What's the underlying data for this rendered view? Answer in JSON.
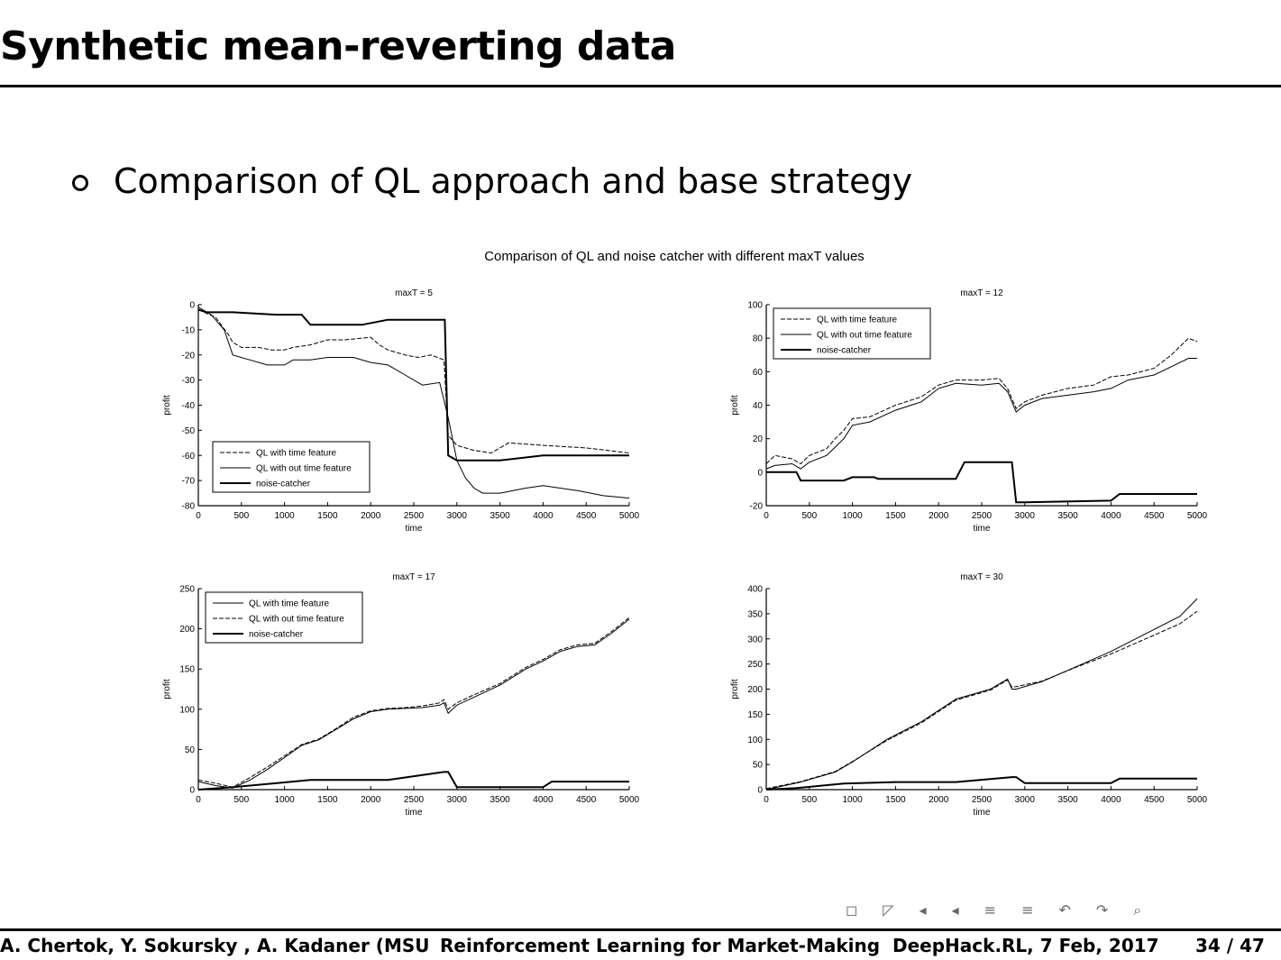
{
  "slide": {
    "title": "Synthetic mean-reverting data",
    "bullet": "Comparison of QL approach and base strategy",
    "nav_symbols": [
      "◻",
      "◸",
      "◂",
      "◂",
      "≡",
      "≡",
      "↶",
      "↷",
      "⌕"
    ],
    "footer": {
      "authors": "A. Chertok, Y. Sokursky , A. Kadaner (MSU",
      "talk": "Reinforcement Learning for Market-Making",
      "event": "DeepHack.RL, 7 Feb, 2017",
      "page": "34 / 47"
    }
  },
  "figure_title": "Comparison of QL and noise catcher with different maxT values",
  "chart_data": [
    {
      "type": "line",
      "title": "maxT = 5",
      "xlabel": "time",
      "ylabel": "profit",
      "xlim": [
        0,
        5000
      ],
      "ylim": [
        -80,
        0
      ],
      "xticks": [
        "0",
        "500",
        "1000",
        "1500",
        "2000",
        "2500",
        "3000",
        "3500",
        "4000",
        "4500",
        "5000"
      ],
      "yticks": [
        "0",
        "-10",
        "-20",
        "-30",
        "-40",
        "-50",
        "-60",
        "-70",
        "-80"
      ],
      "legend": "lower-left",
      "series": [
        {
          "name": "QL with time feature",
          "style": "dashed",
          "x": [
            0,
            200,
            350,
            400,
            500,
            700,
            850,
            1000,
            1100,
            1300,
            1500,
            1700,
            2000,
            2100,
            2200,
            2400,
            2550,
            2700,
            2850,
            2900,
            3000,
            3100,
            3200,
            3400,
            3600,
            4000,
            4500,
            5000
          ],
          "y": [
            -2,
            -5,
            -12,
            -15,
            -17,
            -17,
            -18,
            -18,
            -17,
            -16,
            -14,
            -14,
            -13,
            -16,
            -18,
            -20,
            -21,
            -20,
            -22,
            -52,
            -56,
            -57,
            -58,
            -59,
            -55,
            -56,
            -57,
            -59
          ]
        },
        {
          "name": "QL with out time feature",
          "style": "solid-thin",
          "x": [
            0,
            150,
            300,
            400,
            600,
            800,
            1000,
            1100,
            1300,
            1500,
            1800,
            2000,
            2200,
            2400,
            2600,
            2800,
            2900,
            3000,
            3100,
            3200,
            3300,
            3500,
            3800,
            4000,
            4400,
            4700,
            5000
          ],
          "y": [
            -1,
            -4,
            -10,
            -20,
            -22,
            -24,
            -24,
            -22,
            -22,
            -21,
            -21,
            -23,
            -24,
            -28,
            -32,
            -31,
            -45,
            -62,
            -69,
            -73,
            -75,
            -75,
            -73,
            -72,
            -74,
            -76,
            -77
          ]
        },
        {
          "name": "noise-catcher",
          "style": "solid",
          "x": [
            0,
            100,
            400,
            900,
            1200,
            1300,
            1900,
            2200,
            2700,
            2860,
            2900,
            3000,
            3500,
            4000,
            4500,
            5000
          ],
          "y": [
            -2,
            -3,
            -3,
            -4,
            -4,
            -8,
            -8,
            -6,
            -6,
            -6,
            -60,
            -62,
            -62,
            -60,
            -60,
            -60
          ]
        }
      ]
    },
    {
      "type": "line",
      "title": "maxT = 12",
      "xlabel": "time",
      "ylabel": "profit",
      "xlim": [
        0,
        5000
      ],
      "ylim": [
        -20,
        100
      ],
      "xticks": [
        "0",
        "500",
        "1000",
        "1500",
        "2000",
        "2500",
        "3000",
        "3500",
        "4000",
        "4500",
        "5000"
      ],
      "yticks": [
        "-20",
        "0",
        "20",
        "40",
        "60",
        "80",
        "100"
      ],
      "legend": "top-left",
      "series": [
        {
          "name": "QL with time feature",
          "style": "dashed",
          "x": [
            0,
            100,
            300,
            400,
            500,
            700,
            800,
            900,
            1000,
            1200,
            1500,
            1800,
            2000,
            2200,
            2500,
            2700,
            2800,
            2900,
            3000,
            3200,
            3500,
            3800,
            4000,
            4200,
            4500,
            4700,
            4900,
            5000
          ],
          "y": [
            5,
            10,
            8,
            5,
            10,
            14,
            20,
            25,
            32,
            33,
            40,
            45,
            52,
            55,
            55,
            56,
            50,
            38,
            42,
            46,
            50,
            52,
            57,
            58,
            62,
            70,
            80,
            78
          ]
        },
        {
          "name": "QL with out time feature",
          "style": "solid-thin",
          "x": [
            0,
            100,
            300,
            400,
            500,
            700,
            800,
            900,
            1000,
            1200,
            1500,
            1800,
            2000,
            2200,
            2500,
            2700,
            2800,
            2900,
            3000,
            3200,
            3500,
            3800,
            4000,
            4200,
            4500,
            4700,
            4900,
            5000
          ],
          "y": [
            2,
            4,
            5,
            2,
            6,
            10,
            15,
            20,
            28,
            30,
            37,
            42,
            50,
            53,
            52,
            53,
            48,
            36,
            40,
            44,
            46,
            48,
            50,
            55,
            58,
            63,
            68,
            68
          ]
        },
        {
          "name": "noise-catcher",
          "style": "solid",
          "x": [
            0,
            350,
            400,
            900,
            1000,
            1250,
            1300,
            2200,
            2300,
            2850,
            2900,
            3000,
            4000,
            4100,
            5000
          ],
          "y": [
            0,
            0,
            -5,
            -5,
            -3,
            -3,
            -4,
            -4,
            6,
            6,
            -18,
            -18,
            -17,
            -13,
            -13
          ]
        }
      ]
    },
    {
      "type": "line",
      "title": "maxT = 17",
      "xlabel": "time",
      "ylabel": "profit",
      "xlim": [
        0,
        5000
      ],
      "ylim": [
        0,
        250
      ],
      "xticks": [
        "0",
        "500",
        "1000",
        "1500",
        "2000",
        "2500",
        "3000",
        "3500",
        "4000",
        "4500",
        "5000"
      ],
      "yticks": [
        "0",
        "50",
        "100",
        "150",
        "200",
        "250"
      ],
      "legend": "top-left",
      "series": [
        {
          "name": "QL with time feature",
          "style": "solid-thin",
          "x": [
            0,
            200,
            400,
            600,
            800,
            1000,
            1200,
            1400,
            1600,
            1800,
            2000,
            2200,
            2400,
            2600,
            2800,
            2850,
            2900,
            3000,
            3200,
            3500,
            3800,
            4000,
            4200,
            4400,
            4600,
            4800,
            5000
          ],
          "y": [
            10,
            5,
            2,
            12,
            25,
            40,
            55,
            62,
            75,
            88,
            97,
            100,
            101,
            102,
            105,
            108,
            95,
            105,
            115,
            130,
            150,
            160,
            172,
            178,
            180,
            195,
            212
          ]
        },
        {
          "name": "QL with out time feature",
          "style": "dashed",
          "x": [
            0,
            200,
            400,
            600,
            800,
            1000,
            1200,
            1400,
            1600,
            1800,
            2000,
            2200,
            2400,
            2600,
            2800,
            2850,
            2900,
            3000,
            3200,
            3500,
            3800,
            4000,
            4200,
            4400,
            4600,
            4800,
            5000
          ],
          "y": [
            12,
            8,
            3,
            15,
            28,
            42,
            56,
            63,
            76,
            90,
            98,
            101,
            102,
            104,
            108,
            112,
            100,
            108,
            118,
            132,
            152,
            162,
            174,
            180,
            182,
            197,
            214
          ]
        },
        {
          "name": "noise-catcher",
          "style": "solid",
          "x": [
            0,
            400,
            900,
            1300,
            2200,
            2850,
            2900,
            3000,
            4000,
            4100,
            5000
          ],
          "y": [
            0,
            3,
            8,
            12,
            12,
            22,
            22,
            3,
            3,
            10,
            10
          ]
        }
      ]
    },
    {
      "type": "line",
      "title": "maxT = 30",
      "xlabel": "time",
      "ylabel": "profit",
      "xlim": [
        0,
        5000
      ],
      "ylim": [
        0,
        400
      ],
      "xticks": [
        "0",
        "500",
        "1000",
        "1500",
        "2000",
        "2500",
        "3000",
        "3500",
        "4000",
        "4500",
        "5000"
      ],
      "yticks": [
        "0",
        "50",
        "100",
        "150",
        "200",
        "250",
        "300",
        "350",
        "400"
      ],
      "legend": "none",
      "series": [
        {
          "name": "QL with time feature",
          "style": "solid-thin",
          "x": [
            0,
            400,
            800,
            1000,
            1400,
            1800,
            2200,
            2600,
            2800,
            2850,
            2900,
            3200,
            3600,
            4000,
            4400,
            4800,
            5000
          ],
          "y": [
            0,
            15,
            35,
            55,
            100,
            135,
            180,
            200,
            220,
            200,
            200,
            215,
            245,
            275,
            310,
            345,
            380
          ]
        },
        {
          "name": "QL with out time feature",
          "style": "dashed",
          "x": [
            0,
            400,
            800,
            1000,
            1400,
            1800,
            2200,
            2600,
            2800,
            2850,
            2900,
            3200,
            3600,
            4000,
            4400,
            4800,
            5000
          ],
          "y": [
            2,
            16,
            36,
            56,
            98,
            133,
            178,
            198,
            218,
            204,
            205,
            216,
            244,
            270,
            300,
            330,
            355
          ]
        },
        {
          "name": "noise-catcher",
          "style": "solid",
          "x": [
            0,
            350,
            900,
            1500,
            2200,
            2850,
            2900,
            3000,
            4000,
            4100,
            5000
          ],
          "y": [
            0,
            3,
            12,
            15,
            15,
            25,
            25,
            13,
            13,
            22,
            22
          ]
        }
      ]
    }
  ]
}
